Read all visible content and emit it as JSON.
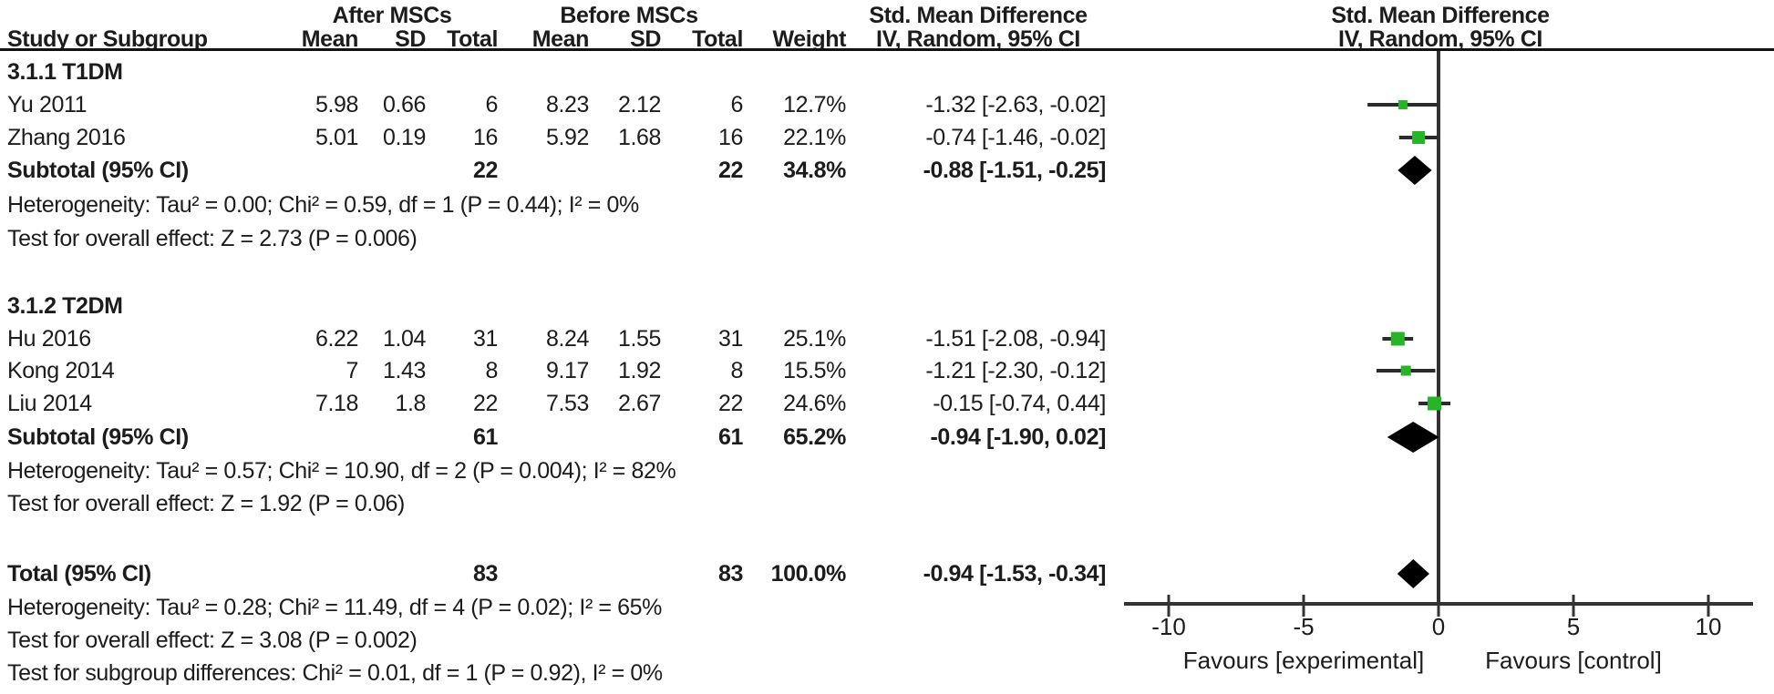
{
  "header": {
    "group1": "After MSCs",
    "group2": "Before MSCs",
    "smd_text_col": "Std. Mean Difference",
    "smd_plot_col": "Std. Mean Difference",
    "col_study": "Study or Subgroup",
    "col_mean1": "Mean",
    "col_sd1": "SD",
    "col_total1": "Total",
    "col_mean2": "Mean",
    "col_sd2": "SD",
    "col_total2": "Total",
    "col_weight": "Weight",
    "method_text_col": "IV, Random, 95% CI",
    "method_plot_col": "IV, Random, 95% CI"
  },
  "sections": [
    {
      "title": "3.1.1 T1DM",
      "studies": [
        {
          "name": "Yu  2011",
          "mean1": "5.98",
          "sd1": "0.66",
          "total1": "6",
          "mean2": "8.23",
          "sd2": "2.12",
          "total2": "6",
          "weight": "12.7%",
          "ci_text": "-1.32 [-2.63, -0.02]"
        },
        {
          "name": "Zhang 2016",
          "mean1": "5.01",
          "sd1": "0.19",
          "total1": "16",
          "mean2": "5.92",
          "sd2": "1.68",
          "total2": "16",
          "weight": "22.1%",
          "ci_text": "-0.74 [-1.46, -0.02]"
        }
      ],
      "subtotal": {
        "label": "Subtotal (95% CI)",
        "total1": "22",
        "total2": "22",
        "weight": "34.8%",
        "ci_text": "-0.88 [-1.51, -0.25]"
      },
      "heterogeneity": "Heterogeneity: Tau² = 0.00; Chi² = 0.59, df = 1 (P = 0.44); I² = 0%",
      "overall_effect": "Test for overall effect: Z = 2.73 (P = 0.006)"
    },
    {
      "title": "3.1.2 T2DM",
      "studies": [
        {
          "name": "Hu 2016",
          "mean1": "6.22",
          "sd1": "1.04",
          "total1": "31",
          "mean2": "8.24",
          "sd2": "1.55",
          "total2": "31",
          "weight": "25.1%",
          "ci_text": "-1.51 [-2.08, -0.94]"
        },
        {
          "name": "Kong 2014",
          "mean1": "7",
          "sd1": "1.43",
          "total1": "8",
          "mean2": "9.17",
          "sd2": "1.92",
          "total2": "8",
          "weight": "15.5%",
          "ci_text": "-1.21 [-2.30, -0.12]"
        },
        {
          "name": "Liu 2014",
          "mean1": "7.18",
          "sd1": "1.8",
          "total1": "22",
          "mean2": "7.53",
          "sd2": "2.67",
          "total2": "22",
          "weight": "24.6%",
          "ci_text": "-0.15 [-0.74, 0.44]"
        }
      ],
      "subtotal": {
        "label": "Subtotal (95% CI)",
        "total1": "61",
        "total2": "61",
        "weight": "65.2%",
        "ci_text": "-0.94 [-1.90, 0.02]"
      },
      "heterogeneity": "Heterogeneity: Tau² = 0.57; Chi² = 10.90, df = 2 (P = 0.004); I² = 82%",
      "overall_effect": "Test for overall effect: Z = 1.92 (P = 0.06)"
    }
  ],
  "total": {
    "label": "Total (95% CI)",
    "total1": "83",
    "total2": "83",
    "weight": "100.0%",
    "ci_text": "-0.94 [-1.53, -0.34]",
    "heterogeneity": "Heterogeneity: Tau² = 0.28; Chi² = 11.49, df = 4 (P = 0.02); I² = 65%",
    "overall_effect": "Test for overall effect: Z = 3.08 (P = 0.002)",
    "subgroup_diff": "Test for subgroup differences: Chi² = 0.01, df = 1 (P = 0.92), I² = 0%"
  },
  "chart_data": {
    "type": "forest",
    "effect_measure": "Std. Mean Difference (IV, Random, 95% CI)",
    "x_axis": {
      "ticks": [
        -10,
        -5,
        0,
        5,
        10
      ],
      "range": [
        -11.6,
        11.6
      ],
      "label_left": "Favours [experimental]",
      "label_right": "Favours [control]"
    },
    "studies": [
      {
        "name": "Yu 2011",
        "group": "3.1.1 T1DM",
        "est": -1.32,
        "lo": -2.63,
        "hi": -0.02,
        "weight_pct": 12.7
      },
      {
        "name": "Zhang 2016",
        "group": "3.1.1 T1DM",
        "est": -0.74,
        "lo": -1.46,
        "hi": -0.02,
        "weight_pct": 22.1
      },
      {
        "name": "Hu 2016",
        "group": "3.1.2 T2DM",
        "est": -1.51,
        "lo": -2.08,
        "hi": -0.94,
        "weight_pct": 25.1
      },
      {
        "name": "Kong 2014",
        "group": "3.1.2 T2DM",
        "est": -1.21,
        "lo": -2.3,
        "hi": -0.12,
        "weight_pct": 15.5
      },
      {
        "name": "Liu 2014",
        "group": "3.1.2 T2DM",
        "est": -0.15,
        "lo": -0.74,
        "hi": 0.44,
        "weight_pct": 24.6
      }
    ],
    "diamonds": [
      {
        "name": "Subtotal 3.1.1 T1DM",
        "est": -0.88,
        "lo": -1.51,
        "hi": -0.25
      },
      {
        "name": "Subtotal 3.1.2 T2DM",
        "est": -0.94,
        "lo": -1.9,
        "hi": 0.02
      },
      {
        "name": "Total",
        "est": -0.94,
        "lo": -1.53,
        "hi": -0.34
      }
    ],
    "colors": {
      "square": "#28b428",
      "diamond": "#000000",
      "ci_line": "#2b2b2b",
      "axis": "#333333",
      "text": "#1c1c1c"
    }
  }
}
